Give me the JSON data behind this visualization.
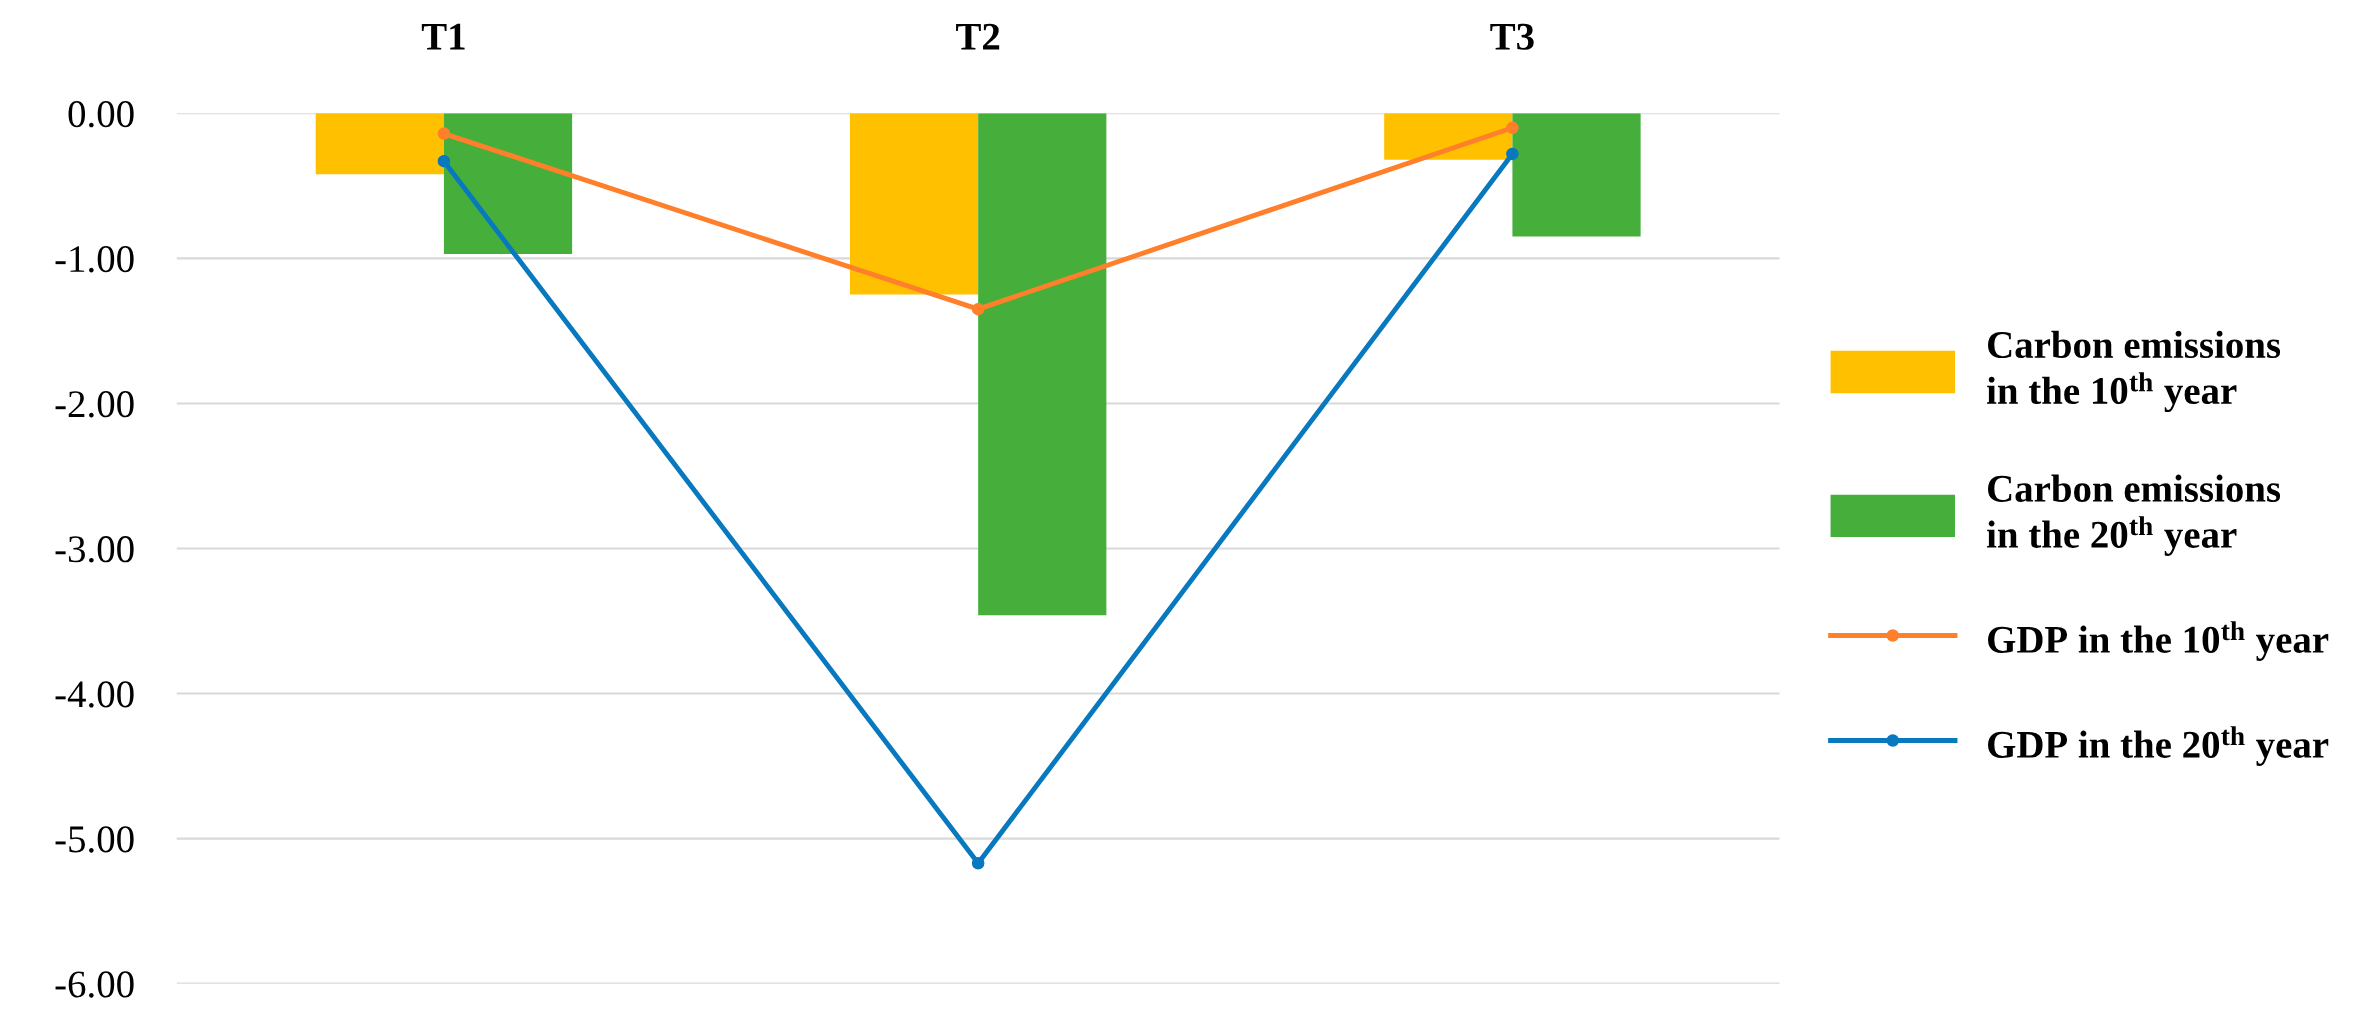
{
  "chart_data": {
    "type": "bar",
    "categories": [
      "T1",
      "T2",
      "T3"
    ],
    "series": [
      {
        "name": "Carbon emissions\nin the 10$^{th}$ year",
        "color": "#ffc000",
        "values": [
          -0.42,
          -1.25,
          -0.32
        ]
      },
      {
        "name": "Carbon emissions\nin the 20$^{th}$ year",
        "color": "#46af3b",
        "values": [
          -0.97,
          -3.46,
          -0.85
        ]
      },
      {
        "name": "GDP in the 10$^{th}$ year",
        "type": "line",
        "color": "#ff7f2a",
        "values": [
          -0.14,
          -1.35,
          -0.1
        ]
      },
      {
        "name": "GDP in the 20$^{th}$ year",
        "type": "line",
        "color": "#0878bf",
        "values": [
          -0.33,
          -5.17,
          -0.28
        ]
      }
    ],
    "ylim": [
      -6,
      0
    ],
    "yticks": [
      {
        "value": 0,
        "label": "0.00"
      },
      {
        "value": -1,
        "label": "-1.00"
      },
      {
        "value": -2,
        "label": "-2.00"
      },
      {
        "value": -3,
        "label": "-3.00"
      },
      {
        "value": -4,
        "label": "-4.00"
      },
      {
        "value": -5,
        "label": "-5.00"
      },
      {
        "value": -6,
        "label": "-6.00"
      }
    ],
    "grid": "y",
    "legend": "right",
    "marker": "circle",
    "line_style": "solid"
  }
}
